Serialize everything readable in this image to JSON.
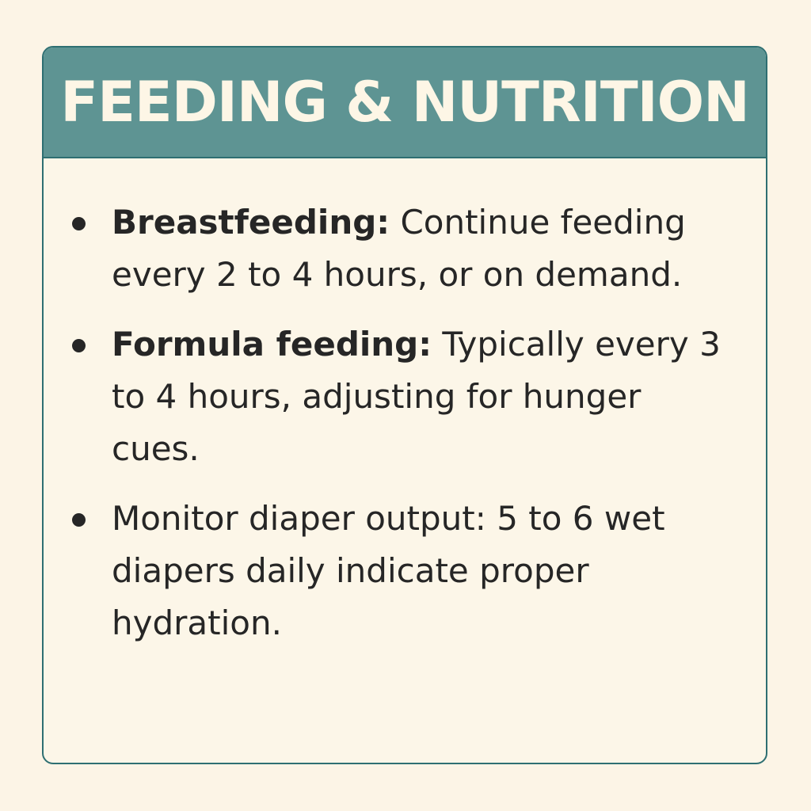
{
  "header": {
    "title": "FEEDING & NUTRITION"
  },
  "items": [
    {
      "lead": "Breastfeeding:",
      "text": " Continue feeding every 2 to 4 hours, or on demand."
    },
    {
      "lead": "Formula feeding:",
      "text": " Typically every 3 to 4 hours, adjusting for hunger cues."
    },
    {
      "lead": "",
      "text": "Monitor diaper output: 5 to 6 wet diapers daily indicate proper hydration."
    }
  ],
  "colors": {
    "page_background": "#fcf4e6",
    "card_background": "#fcf6e8",
    "header_background": "#5e9493",
    "border": "#2e6f72",
    "title_text": "#fdf6e6",
    "body_text": "#262626"
  }
}
